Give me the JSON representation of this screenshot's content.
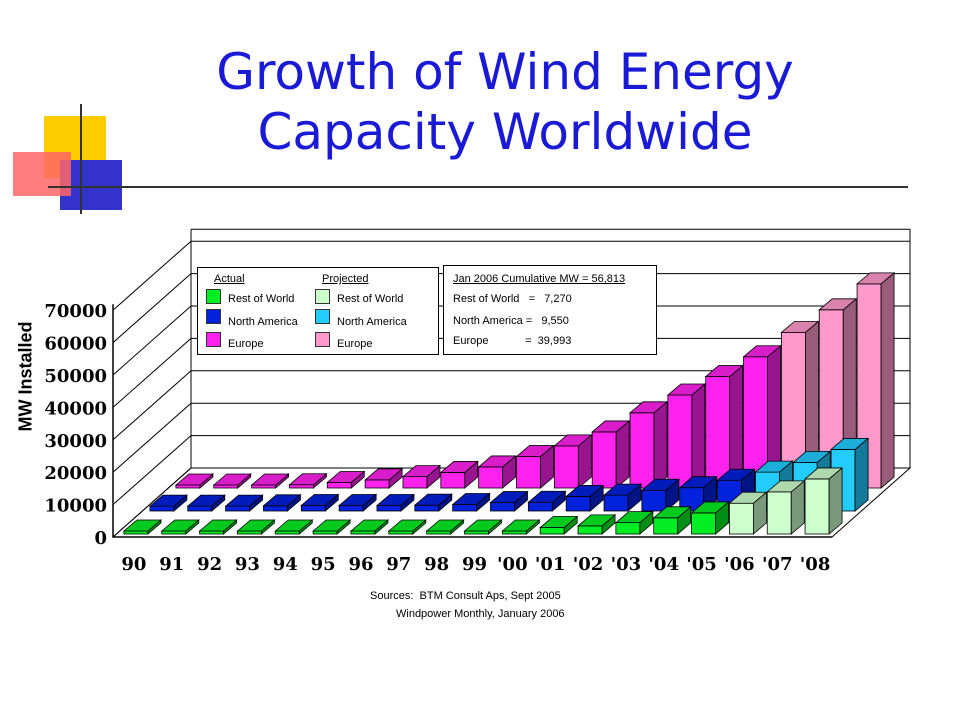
{
  "title_line1": "Growth of Wind Energy",
  "title_line2": "Capacity Worldwide",
  "chart_data": {
    "type": "bar",
    "categories": [
      "90",
      "91",
      "92",
      "93",
      "94",
      "95",
      "96",
      "97",
      "98",
      "99",
      "'00",
      "'01",
      "'02",
      "'03",
      "'04",
      "'05",
      "'06",
      "'07",
      "'08"
    ],
    "ylabel": "MW Installed",
    "ylim": [
      0,
      70000
    ],
    "yticks": [
      0,
      10000,
      20000,
      30000,
      40000,
      50000,
      60000,
      70000
    ],
    "grid": true,
    "projected_from": "'06",
    "series": [
      {
        "name": "Rest of World",
        "values": [
          100,
          100,
          100,
          100,
          100,
          100,
          100,
          100,
          200,
          200,
          500,
          2000,
          2500,
          3500,
          5000,
          6500,
          9500,
          13000,
          17000
        ]
      },
      {
        "name": "North America",
        "values": [
          1500,
          1500,
          1500,
          1600,
          1700,
          1700,
          1700,
          1800,
          2000,
          2600,
          2700,
          4500,
          4900,
          6400,
          7200,
          9500,
          12000,
          15000,
          19000
        ]
      },
      {
        "name": "Europe",
        "values": [
          600,
          700,
          800,
          1000,
          1700,
          2500,
          3500,
          4800,
          6500,
          9700,
          13000,
          17300,
          23200,
          28700,
          34400,
          40500,
          48000,
          55000,
          63000
        ]
      }
    ]
  },
  "legend": {
    "actual_label": "Actual",
    "projected_label": "Projected",
    "actual_items": [
      "Rest of World",
      "North America",
      "Europe"
    ],
    "projected_items": [
      "Rest of World",
      "North America",
      "Europe"
    ],
    "actual_colors": [
      "#00ee22",
      "#0022dd",
      "#ff22ee"
    ],
    "projected_colors": [
      "#ccffcc",
      "#22ccff",
      "#ff99cc"
    ]
  },
  "info": {
    "line1": "Jan 2006 Cumulative MW = 56,813",
    "line2": "Rest of World   =   7,270",
    "line3": "North America =   9,550",
    "line4": "Europe            =  39,993"
  },
  "sources": {
    "line1": "Sources:  BTM Consult Aps, Sept 2005",
    "line2": "Windpower Monthly, January 2006"
  }
}
